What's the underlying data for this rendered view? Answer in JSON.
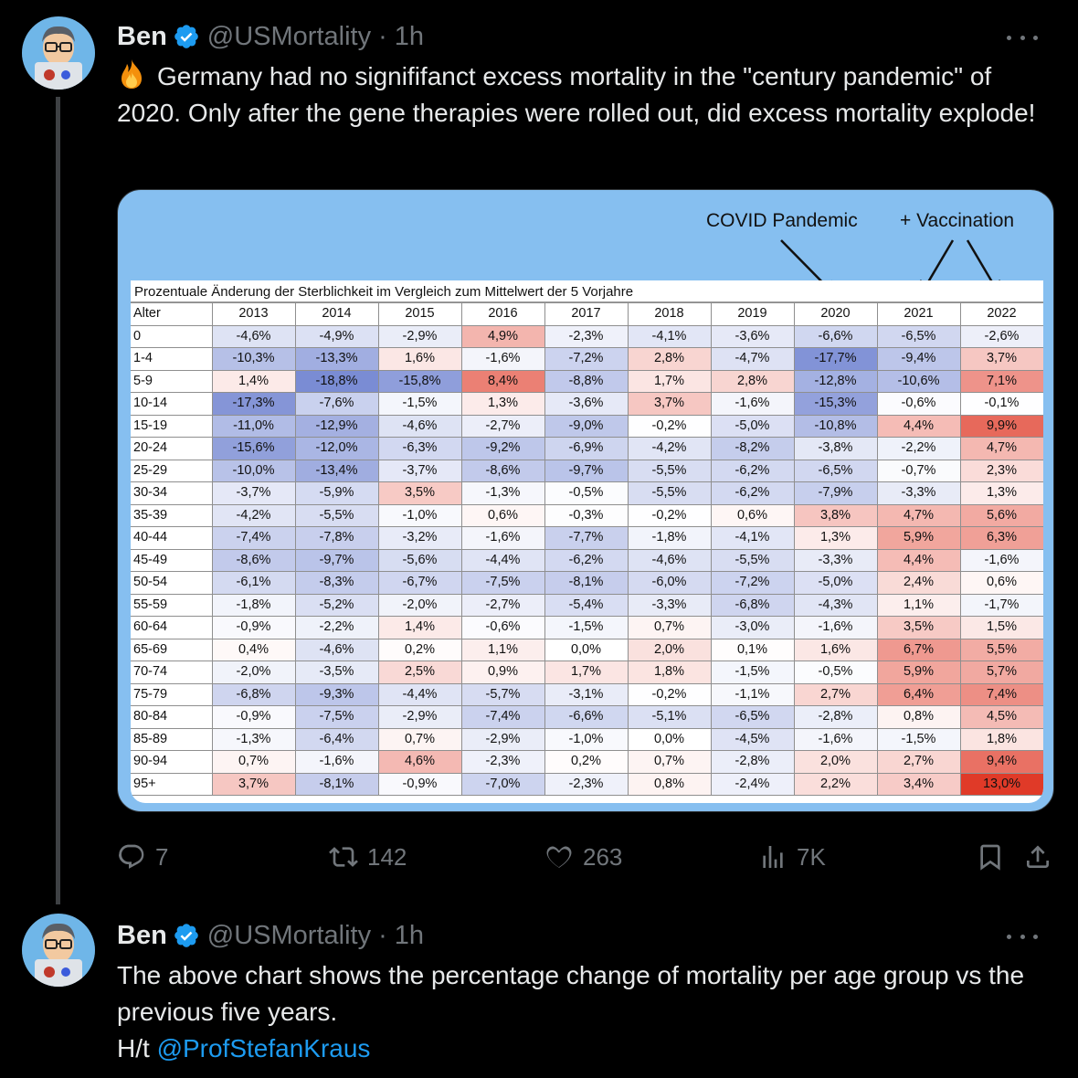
{
  "tweets": [
    {
      "author": {
        "name": "Ben",
        "handle": "@USMortality",
        "time": "1h",
        "verified": true
      },
      "text": "Germany had no signififanct excess mortality in the \"century pandemic\" of 2020. Only after the gene therapies were rolled out, did excess mortality explode!",
      "leading_icon": "fire-emoji",
      "media": {
        "annotations": {
          "covid": "COVID Pandemic",
          "vaccination": "+ Vaccination"
        },
        "table_title": "Prozentuale Änderung der Sterblichkeit im Vergleich zum Mittelwert der 5 Vorjahre",
        "age_header": "Alter",
        "years": [
          "2013",
          "2014",
          "2015",
          "2016",
          "2017",
          "2018",
          "2019",
          "2020",
          "2021",
          "2022"
        ],
        "rows": [
          {
            "age": "0",
            "values": [
              "-4,6%",
              "-4,9%",
              "-2,9%",
              "4,9%",
              "-2,3%",
              "-4,1%",
              "-3,6%",
              "-6,6%",
              "-6,5%",
              "-2,6%"
            ]
          },
          {
            "age": "1-4",
            "values": [
              "-10,3%",
              "-13,3%",
              "1,6%",
              "-1,6%",
              "-7,2%",
              "2,8%",
              "-4,7%",
              "-17,7%",
              "-9,4%",
              "3,7%"
            ]
          },
          {
            "age": "5-9",
            "values": [
              "1,4%",
              "-18,8%",
              "-15,8%",
              "8,4%",
              "-8,8%",
              "1,7%",
              "2,8%",
              "-12,8%",
              "-10,6%",
              "7,1%"
            ]
          },
          {
            "age": "10-14",
            "values": [
              "-17,3%",
              "-7,6%",
              "-1,5%",
              "1,3%",
              "-3,6%",
              "3,7%",
              "-1,6%",
              "-15,3%",
              "-0,6%",
              "-0,1%"
            ]
          },
          {
            "age": "15-19",
            "values": [
              "-11,0%",
              "-12,9%",
              "-4,6%",
              "-2,7%",
              "-9,0%",
              "-0,2%",
              "-5,0%",
              "-10,8%",
              "4,4%",
              "9,9%"
            ]
          },
          {
            "age": "20-24",
            "values": [
              "-15,6%",
              "-12,0%",
              "-6,3%",
              "-9,2%",
              "-6,9%",
              "-4,2%",
              "-8,2%",
              "-3,8%",
              "-2,2%",
              "4,7%"
            ]
          },
          {
            "age": "25-29",
            "values": [
              "-10,0%",
              "-13,4%",
              "-3,7%",
              "-8,6%",
              "-9,7%",
              "-5,5%",
              "-6,2%",
              "-6,5%",
              "-0,7%",
              "2,3%"
            ]
          },
          {
            "age": "30-34",
            "values": [
              "-3,7%",
              "-5,9%",
              "3,5%",
              "-1,3%",
              "-0,5%",
              "-5,5%",
              "-6,2%",
              "-7,9%",
              "-3,3%",
              "1,3%"
            ]
          },
          {
            "age": "35-39",
            "values": [
              "-4,2%",
              "-5,5%",
              "-1,0%",
              "0,6%",
              "-0,3%",
              "-0,2%",
              "0,6%",
              "3,8%",
              "4,7%",
              "5,6%"
            ]
          },
          {
            "age": "40-44",
            "values": [
              "-7,4%",
              "-7,8%",
              "-3,2%",
              "-1,6%",
              "-7,7%",
              "-1,8%",
              "-4,1%",
              "1,3%",
              "5,9%",
              "6,3%"
            ]
          },
          {
            "age": "45-49",
            "values": [
              "-8,6%",
              "-9,7%",
              "-5,6%",
              "-4,4%",
              "-6,2%",
              "-4,6%",
              "-5,5%",
              "-3,3%",
              "4,4%",
              "-1,6%"
            ]
          },
          {
            "age": "50-54",
            "values": [
              "-6,1%",
              "-8,3%",
              "-6,7%",
              "-7,5%",
              "-8,1%",
              "-6,0%",
              "-7,2%",
              "-5,0%",
              "2,4%",
              "0,6%"
            ]
          },
          {
            "age": "55-59",
            "values": [
              "-1,8%",
              "-5,2%",
              "-2,0%",
              "-2,7%",
              "-5,4%",
              "-3,3%",
              "-6,8%",
              "-4,3%",
              "1,1%",
              "-1,7%"
            ]
          },
          {
            "age": "60-64",
            "values": [
              "-0,9%",
              "-2,2%",
              "1,4%",
              "-0,6%",
              "-1,5%",
              "0,7%",
              "-3,0%",
              "-1,6%",
              "3,5%",
              "1,5%"
            ]
          },
          {
            "age": "65-69",
            "values": [
              "0,4%",
              "-4,6%",
              "0,2%",
              "1,1%",
              "0,0%",
              "2,0%",
              "0,1%",
              "1,6%",
              "6,7%",
              "5,5%"
            ]
          },
          {
            "age": "70-74",
            "values": [
              "-2,0%",
              "-3,5%",
              "2,5%",
              "0,9%",
              "1,7%",
              "1,8%",
              "-1,5%",
              "-0,5%",
              "5,9%",
              "5,7%"
            ]
          },
          {
            "age": "75-79",
            "values": [
              "-6,8%",
              "-9,3%",
              "-4,4%",
              "-5,7%",
              "-3,1%",
              "-0,2%",
              "-1,1%",
              "2,7%",
              "6,4%",
              "7,4%"
            ]
          },
          {
            "age": "80-84",
            "values": [
              "-0,9%",
              "-7,5%",
              "-2,9%",
              "-7,4%",
              "-6,6%",
              "-5,1%",
              "-6,5%",
              "-2,8%",
              "0,8%",
              "4,5%"
            ]
          },
          {
            "age": "85-89",
            "values": [
              "-1,3%",
              "-6,4%",
              "0,7%",
              "-2,9%",
              "-1,0%",
              "0,0%",
              "-4,5%",
              "-1,6%",
              "-1,5%",
              "1,8%"
            ]
          },
          {
            "age": "90-94",
            "values": [
              "0,7%",
              "-1,6%",
              "4,6%",
              "-2,3%",
              "0,2%",
              "0,7%",
              "-2,8%",
              "2,0%",
              "2,7%",
              "9,4%"
            ]
          },
          {
            "age": "95+",
            "values": [
              "3,7%",
              "-8,1%",
              "-0,9%",
              "-7,0%",
              "-2,3%",
              "0,8%",
              "-2,4%",
              "2,2%",
              "3,4%",
              "13,0%"
            ]
          }
        ]
      },
      "actions": {
        "replies": "7",
        "retweets": "142",
        "likes": "263",
        "views": "7K"
      }
    },
    {
      "author": {
        "name": "Ben",
        "handle": "@USMortality",
        "time": "1h",
        "verified": true
      },
      "text_line1": "The above chart shows the percentage change of mortality per age group vs the previous five years.",
      "text_line2_prefix": "H/t ",
      "mention": "@ProfStefanKraus"
    }
  ],
  "colors": {
    "background": "#000000",
    "text": "#e7e9ea",
    "muted": "#71767b",
    "accent": "#1d9bf0",
    "media_bg": "#86bff0",
    "heat_negative": "#7f92d6",
    "heat_positive": "#e0432f"
  },
  "dot_separator": "·"
}
